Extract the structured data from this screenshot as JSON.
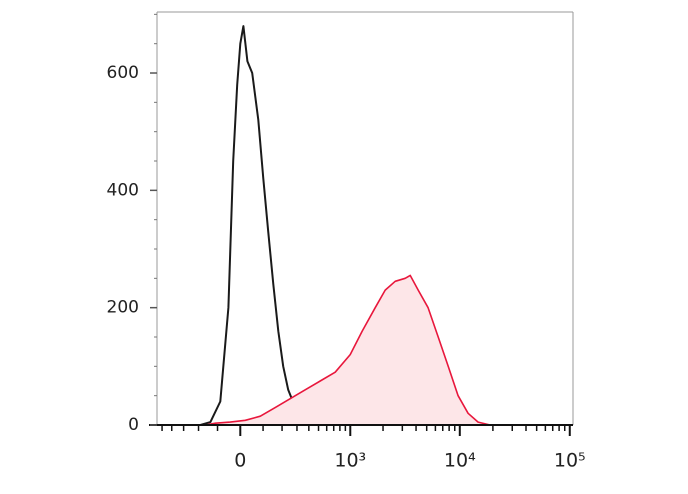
{
  "chart_data": {
    "type": "histogram",
    "xscale": "biexponential",
    "xlim": [
      -560,
      107000
    ],
    "ylim": [
      0,
      704
    ],
    "xticks": [
      0,
      {
        "value": 1000,
        "label": "10³"
      },
      {
        "value": 10000,
        "label": "10⁴"
      },
      {
        "value": 100000,
        "label": "10⁵"
      }
    ],
    "xminor_ticks": [
      -500,
      -400,
      -300,
      -200,
      -100,
      100,
      200,
      300,
      400,
      500,
      600,
      700,
      800,
      900,
      2000,
      3000,
      4000,
      5000,
      6000,
      7000,
      8000,
      9000,
      20000,
      30000,
      40000,
      50000,
      60000,
      70000,
      80000,
      90000
    ],
    "yticks": [
      0,
      200,
      400,
      600
    ],
    "yminor_ticks": [
      50,
      100,
      150,
      250,
      300,
      350,
      450,
      500,
      550,
      650,
      700
    ],
    "series": [
      {
        "color": "#1a1a1a",
        "fill": null,
        "x": [
          -189,
          -135,
          -87,
          -51,
          -30,
          -13,
          0,
          13,
          30,
          51,
          78,
          101,
          125,
          151,
          178,
          207,
          238,
          287,
          367,
          462,
          580,
          808
        ],
        "values": [
          0,
          5,
          40,
          200,
          450,
          580,
          650,
          680,
          620,
          600,
          520,
          420,
          330,
          240,
          160,
          100,
          60,
          30,
          15,
          5,
          0,
          0
        ]
      },
      {
        "color": "#e8173c",
        "fill": "#fde6e8",
        "x": [
          -160,
          -110,
          -43,
          21,
          87,
          162,
          253,
          367,
          519,
          723,
          998,
          1289,
          1695,
          2093,
          2582,
          3186,
          3535,
          4181,
          5151,
          6363,
          7838,
          9656,
          11898,
          14665,
          18867
        ],
        "values": [
          0,
          3,
          5,
          8,
          15,
          30,
          45,
          60,
          75,
          90,
          120,
          160,
          200,
          230,
          245,
          250,
          255,
          230,
          200,
          150,
          100,
          50,
          20,
          5,
          0
        ]
      }
    ]
  }
}
